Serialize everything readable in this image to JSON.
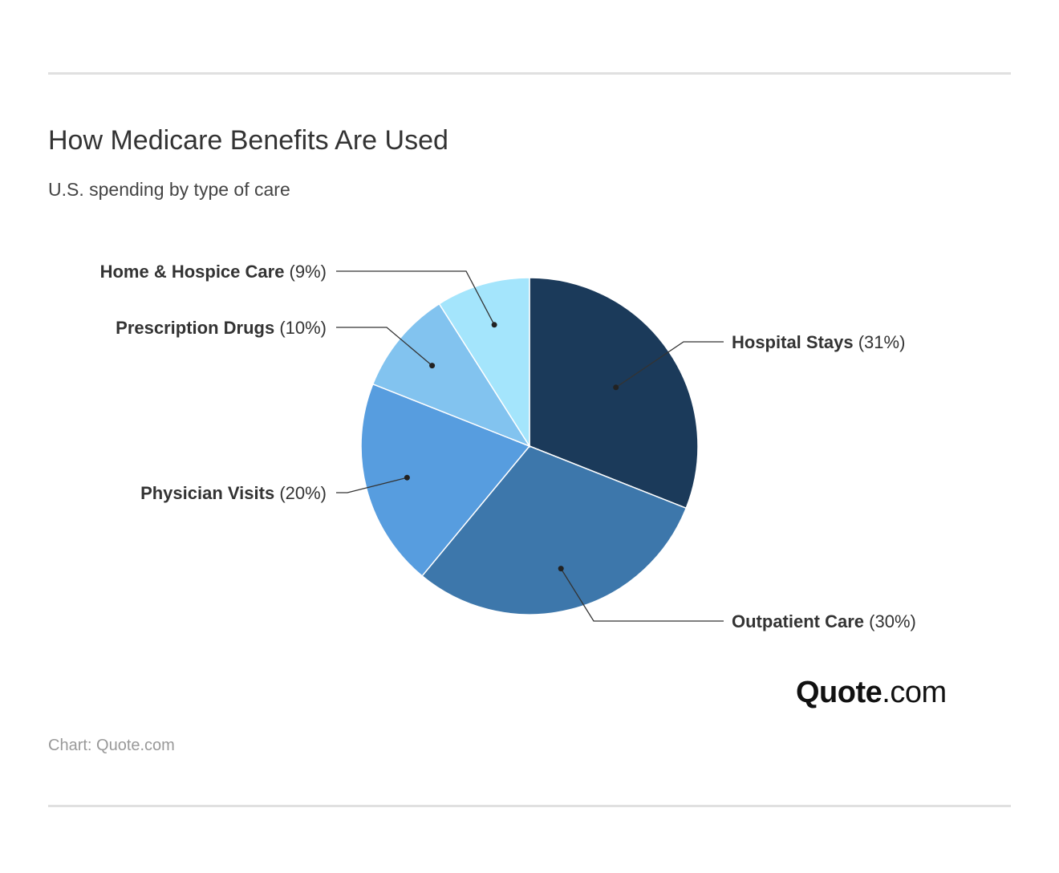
{
  "header": {
    "title": "How Medicare Benefits Are Used",
    "subtitle": "U.S. spending by type of care"
  },
  "chart_data": {
    "type": "pie",
    "title": "How Medicare Benefits Are Used",
    "subtitle": "U.S. spending by type of care",
    "unit": "%",
    "slices": [
      {
        "label": "Hospital Stays",
        "value": 31,
        "value_text": "(31%)",
        "color": "#1b3a5a"
      },
      {
        "label": "Outpatient Care",
        "value": 30,
        "value_text": "(30%)",
        "color": "#3d77ab"
      },
      {
        "label": "Physician Visits",
        "value": 20,
        "value_text": "(20%)",
        "color": "#579ddf"
      },
      {
        "label": "Prescription Drugs",
        "value": 10,
        "value_text": "(10%)",
        "color": "#82c3ef"
      },
      {
        "label": "Home & Hospice Care",
        "value": 9,
        "value_text": "(9%)",
        "color": "#a4e5fc"
      }
    ],
    "label_placement": "outside with leader lines"
  },
  "branding": {
    "logo_bold": "Quote",
    "logo_light": ".com"
  },
  "footer": {
    "source": "Chart: Quote.com"
  }
}
